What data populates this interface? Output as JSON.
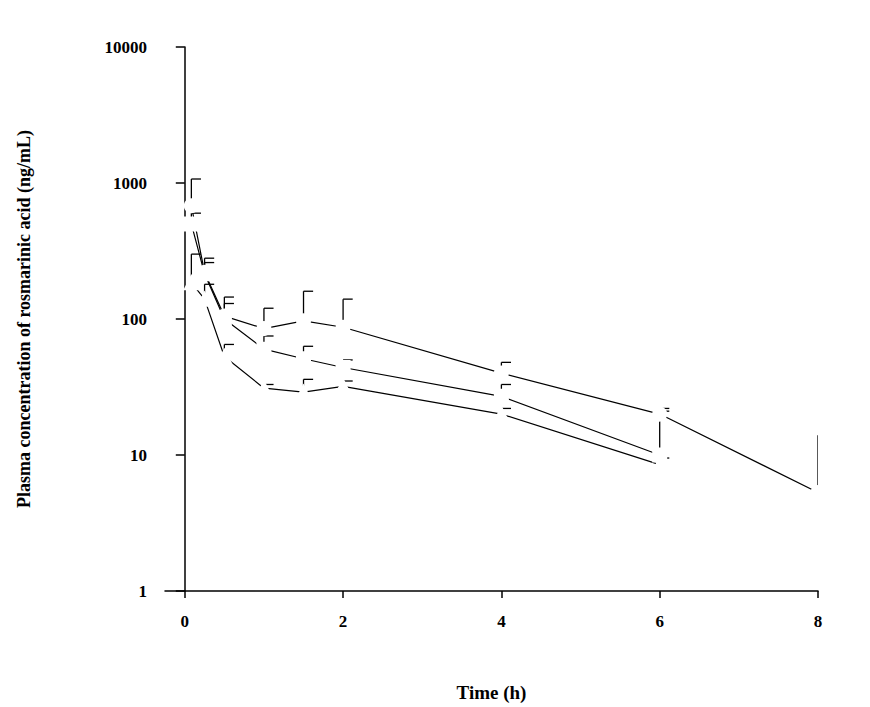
{
  "chart_data": {
    "type": "line",
    "x_label": "Time (h)",
    "y_label": "Plasma concentration of rosmarinic acid (ng/mL)",
    "log": "y",
    "grid": false,
    "x": [
      0.083,
      0.25,
      0.5,
      1,
      1.5,
      2,
      4,
      6,
      8
    ],
    "xlim": [
      -0.25,
      8
    ],
    "xticks": [
      0,
      2,
      4,
      6,
      8
    ],
    "ylim": [
      1,
      10000
    ],
    "yticks": [
      1,
      10,
      100,
      1000,
      10000
    ],
    "series": [
      {
        "color": "#000000",
        "marker": "circle",
        "values": [
          680,
          220,
          105,
          85,
          97,
          87,
          40,
          20,
          5.3
        ],
        "errors": [
          390,
          60,
          40,
          35,
          63,
          53,
          8,
          2,
          8.7
        ]
      },
      {
        "color": "#000000",
        "marker": "square",
        "values": [
          500,
          215,
          100,
          60,
          51,
          44,
          27,
          10,
          null
        ],
        "errors": [
          100,
          45,
          30,
          15,
          12,
          6,
          6,
          11,
          null
        ]
      },
      {
        "color": "#000000",
        "marker": "triangle",
        "values": [
          185,
          140,
          53,
          31,
          29,
          32,
          20,
          8.5,
          null
        ],
        "errors": [
          115,
          40,
          12,
          2,
          7,
          3,
          2,
          1,
          null
        ]
      }
    ]
  }
}
